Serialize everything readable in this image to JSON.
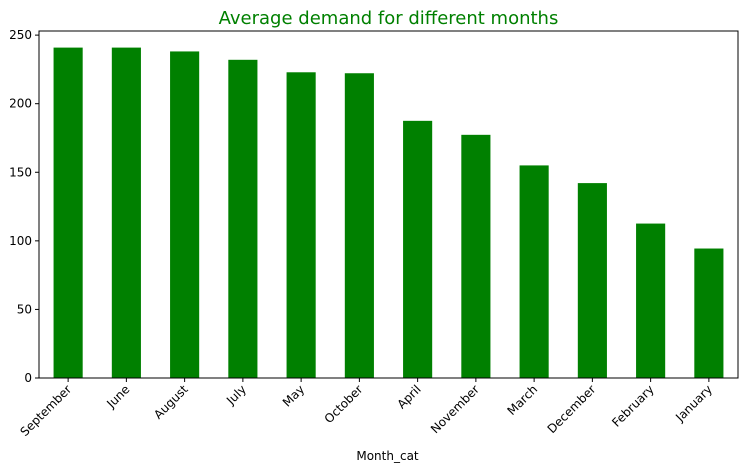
{
  "chart_data": {
    "type": "bar",
    "title": "Average demand for different months",
    "xlabel": "Month_cat",
    "ylabel": "",
    "ylim": [
      0,
      253
    ],
    "yticks": [
      0,
      50,
      100,
      150,
      200,
      250
    ],
    "categories": [
      "September",
      "June",
      "August",
      "July",
      "May",
      "October",
      "April",
      "November",
      "March",
      "December",
      "February",
      "January"
    ],
    "values": [
      240.9,
      240.9,
      238.1,
      232.0,
      222.9,
      222.2,
      187.5,
      177.3,
      155.0,
      142.1,
      112.6,
      94.4
    ],
    "grid": false,
    "legend": "none",
    "bar_color": "#008000",
    "title_color": "#008000"
  }
}
